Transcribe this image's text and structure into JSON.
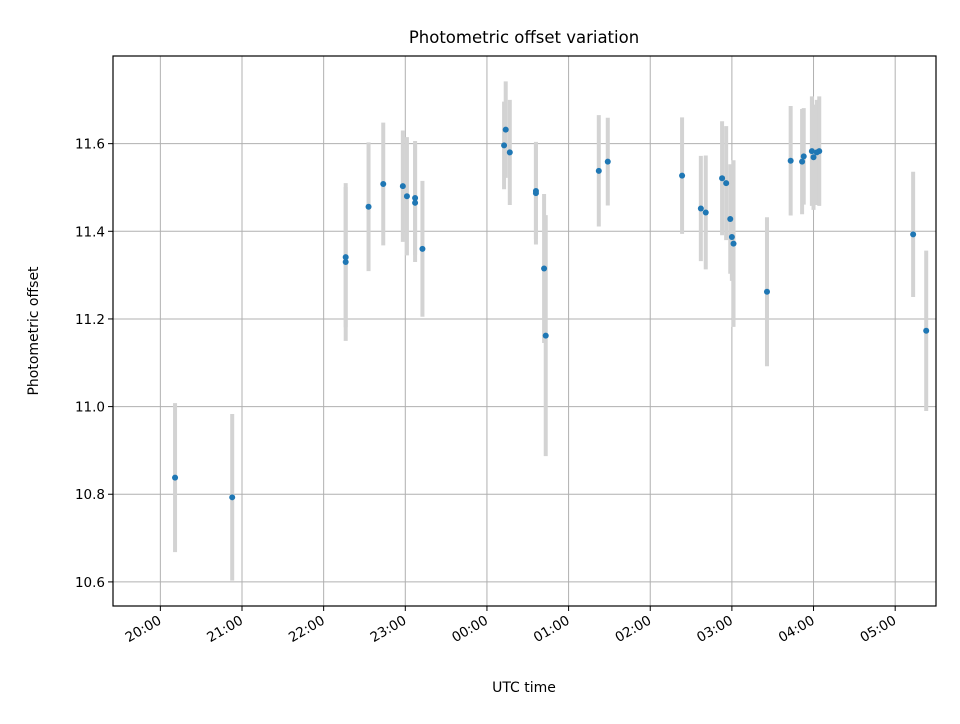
{
  "chart_data": {
    "type": "scatter",
    "title": "Photometric offset variation",
    "xlabel": "UTC time",
    "ylabel": "Photometric offset",
    "x_unit": "hours after 00:00 UTC (negative = previous evening)",
    "xlim": [
      -4.58,
      5.5
    ],
    "ylim": [
      10.545,
      11.8
    ],
    "x_ticks": [
      {
        "value": -4,
        "label": "20:00"
      },
      {
        "value": -3,
        "label": "21:00"
      },
      {
        "value": -2,
        "label": "22:00"
      },
      {
        "value": -1,
        "label": "23:00"
      },
      {
        "value": 0,
        "label": "00:00"
      },
      {
        "value": 1,
        "label": "01:00"
      },
      {
        "value": 2,
        "label": "02:00"
      },
      {
        "value": 3,
        "label": "03:00"
      },
      {
        "value": 4,
        "label": "04:00"
      },
      {
        "value": 5,
        "label": "05:00"
      }
    ],
    "y_ticks": [
      {
        "value": 10.6,
        "label": "10.6"
      },
      {
        "value": 10.8,
        "label": "10.8"
      },
      {
        "value": 11.0,
        "label": "11.0"
      },
      {
        "value": 11.2,
        "label": "11.2"
      },
      {
        "value": 11.4,
        "label": "11.4"
      },
      {
        "value": 11.6,
        "label": "11.6"
      }
    ],
    "grid": true,
    "marker_color": "#1f77b4",
    "errorbar_color": "#d3d3d3",
    "points": [
      {
        "x": -3.82,
        "y": 10.838,
        "yerr": 0.17
      },
      {
        "x": -3.12,
        "y": 10.793,
        "yerr": 0.19
      },
      {
        "x": -1.73,
        "y": 11.33,
        "yerr": 0.18
      },
      {
        "x": -1.73,
        "y": 11.341,
        "yerr": 0.16
      },
      {
        "x": -1.45,
        "y": 11.456,
        "yerr": 0.147
      },
      {
        "x": -1.27,
        "y": 11.508,
        "yerr": 0.14
      },
      {
        "x": -1.03,
        "y": 11.503,
        "yerr": 0.127
      },
      {
        "x": -0.98,
        "y": 11.48,
        "yerr": 0.135
      },
      {
        "x": -0.88,
        "y": 11.465,
        "yerr": 0.135
      },
      {
        "x": -0.88,
        "y": 11.476,
        "yerr": 0.13
      },
      {
        "x": -0.79,
        "y": 11.36,
        "yerr": 0.155
      },
      {
        "x": 0.21,
        "y": 11.596,
        "yerr": 0.1
      },
      {
        "x": 0.23,
        "y": 11.632,
        "yerr": 0.11
      },
      {
        "x": 0.28,
        "y": 11.58,
        "yerr": 0.12
      },
      {
        "x": 0.6,
        "y": 11.487,
        "yerr": 0.117
      },
      {
        "x": 0.6,
        "y": 11.492,
        "yerr": 0.11
      },
      {
        "x": 0.7,
        "y": 11.315,
        "yerr": 0.17
      },
      {
        "x": 0.72,
        "y": 11.162,
        "yerr": 0.275
      },
      {
        "x": 1.37,
        "y": 11.538,
        "yerr": 0.127
      },
      {
        "x": 1.48,
        "y": 11.559,
        "yerr": 0.1
      },
      {
        "x": 2.39,
        "y": 11.527,
        "yerr": 0.133
      },
      {
        "x": 2.62,
        "y": 11.452,
        "yerr": 0.12
      },
      {
        "x": 2.68,
        "y": 11.443,
        "yerr": 0.13
      },
      {
        "x": 2.88,
        "y": 11.521,
        "yerr": 0.13
      },
      {
        "x": 2.93,
        "y": 11.51,
        "yerr": 0.13
      },
      {
        "x": 2.98,
        "y": 11.428,
        "yerr": 0.125
      },
      {
        "x": 3.0,
        "y": 11.387,
        "yerr": 0.1
      },
      {
        "x": 3.02,
        "y": 11.372,
        "yerr": 0.19
      },
      {
        "x": 3.43,
        "y": 11.262,
        "yerr": 0.17
      },
      {
        "x": 3.72,
        "y": 11.561,
        "yerr": 0.125
      },
      {
        "x": 3.86,
        "y": 11.559,
        "yerr": 0.12
      },
      {
        "x": 3.88,
        "y": 11.571,
        "yerr": 0.11
      },
      {
        "x": 3.98,
        "y": 11.583,
        "yerr": 0.125
      },
      {
        "x": 4.0,
        "y": 11.569,
        "yerr": 0.12
      },
      {
        "x": 4.04,
        "y": 11.58,
        "yerr": 0.12
      },
      {
        "x": 4.07,
        "y": 11.583,
        "yerr": 0.125
      },
      {
        "x": 5.22,
        "y": 11.393,
        "yerr": 0.143
      },
      {
        "x": 5.38,
        "y": 11.173,
        "yerr": 0.183
      }
    ]
  }
}
